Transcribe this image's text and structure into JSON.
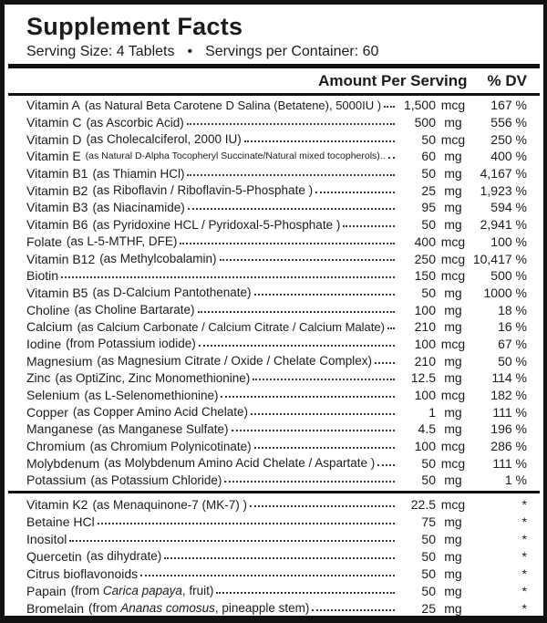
{
  "header": {
    "title": "Supplement Facts",
    "serving_size": "Serving Size: 4 Tablets",
    "bullet": "•",
    "servings_per_container": "Servings per Container: 60"
  },
  "columns": {
    "amount": "Amount Per Serving",
    "dv": "% DV"
  },
  "colors": {
    "background": "#ffffff",
    "text": "#1c1c1c",
    "border": "#111111",
    "leader_dots": "#3b3b3b"
  },
  "sections": [
    {
      "rows": [
        {
          "name": "Vitamin A",
          "desc": [
            "(as Natural Beta Carotene D Salina (Betatene), 5000IU )"
          ],
          "amount": "1,500",
          "unit": "mcg",
          "dv": "167 %"
        },
        {
          "name": "Vitamin C",
          "desc": [
            "(as Ascorbic Acid)"
          ],
          "amount": "500",
          "unit": "mg",
          "dv": "556 %"
        },
        {
          "name": "Vitamin D",
          "desc": [
            "(as Cholecalciferol, 2000 IU)"
          ],
          "amount": "50",
          "unit": "mcg",
          "dv": "250 %"
        },
        {
          "name": "Vitamin E",
          "desc": [
            "(as Natural D-Alpha Tocopheryl Succinate/Natural mixed tocopherols).."
          ],
          "desc_small": true,
          "amount": "60",
          "unit": "mg",
          "dv": "400 %"
        },
        {
          "name": "Vitamin B1",
          "desc": [
            "(as Thiamin HCl)"
          ],
          "amount": "50",
          "unit": "mg",
          "dv": "4,167 %"
        },
        {
          "name": "Vitamin B2",
          "desc": [
            "(as Riboflavin / Riboflavin-5-Phosphate )"
          ],
          "amount": "25",
          "unit": "mg",
          "dv": "1,923 %"
        },
        {
          "name": "Vitamin B3",
          "desc": [
            "(as Niacinamide)"
          ],
          "amount": "95",
          "unit": "mg",
          "dv": "594 %"
        },
        {
          "name": "Vitamin B6",
          "desc": [
            "(as Pyridoxine HCL / Pyridoxal-5-Phosphate )"
          ],
          "amount": "50",
          "unit": "mg",
          "dv": "2,941 %"
        },
        {
          "name": "Folate",
          "desc": [
            "(as L-5-MTHF, DFE)"
          ],
          "amount": "400",
          "unit": "mcg",
          "dv": "100 %"
        },
        {
          "name": "Vitamin B12",
          "desc": [
            "(as Methylcobalamin)"
          ],
          "amount": "250",
          "unit": "mcg",
          "dv": "10,417 %"
        },
        {
          "name": "Biotin",
          "desc": [],
          "amount": "150",
          "unit": "mcg",
          "dv": "500 %"
        },
        {
          "name": "Vitamin B5",
          "desc": [
            "(as D-Calcium Pantothenate)"
          ],
          "amount": "50",
          "unit": "mg",
          "dv": "1000 %"
        },
        {
          "name": "Choline",
          "desc": [
            "(as Choline Bartarate)"
          ],
          "amount": "100",
          "unit": "mg",
          "dv": "18 %"
        },
        {
          "name": "Calcium",
          "desc": [
            "(as Calcium Carbonate / Calcium Citrate / Calcium Malate)"
          ],
          "amount": "210",
          "unit": "mg",
          "dv": "16 %"
        },
        {
          "name": "Iodine",
          "desc": [
            "(from Potassium iodide)"
          ],
          "amount": "100",
          "unit": "mcg",
          "dv": "67 %"
        },
        {
          "name": "Magnesium",
          "desc": [
            "(as Magnesium Citrate / Oxide / Chelate Complex)"
          ],
          "amount": "210",
          "unit": "mg",
          "dv": "50 %"
        },
        {
          "name": "Zinc",
          "desc": [
            "(as OptiZinc, Zinc Monomethionine)"
          ],
          "amount": "12.5",
          "unit": "mg",
          "dv": "114 %"
        },
        {
          "name": "Selenium",
          "desc": [
            "(as L-Selenomethionine)"
          ],
          "amount": "100",
          "unit": "mcg",
          "dv": "182 %"
        },
        {
          "name": "Copper",
          "desc": [
            "(as Copper Amino Acid Chelate)"
          ],
          "amount": "1",
          "unit": "mg",
          "dv": "111 %"
        },
        {
          "name": "Manganese",
          "desc": [
            "(as Manganese Sulfate)"
          ],
          "amount": "4.5",
          "unit": "mg",
          "dv": "196 %"
        },
        {
          "name": "Chromium",
          "desc": [
            "(as Chromium Polynicotinate)"
          ],
          "amount": "100",
          "unit": "mcg",
          "dv": "286 %"
        },
        {
          "name": "Molybdenum",
          "desc": [
            "(as Molybdenum Amino Acid Chelate / Aspartate )"
          ],
          "amount": "50",
          "unit": "mcg",
          "dv": "111 %"
        },
        {
          "name": "Potassium",
          "desc": [
            "(as Potassium Chloride)"
          ],
          "amount": "50",
          "unit": "mg",
          "dv": "1 %"
        }
      ]
    },
    {
      "rows": [
        {
          "name": "Vitamin K2",
          "desc": [
            "(as Menaquinone-7 (MK-7) )"
          ],
          "amount": "22.5",
          "unit": "mcg",
          "dv": "*"
        },
        {
          "name": "Betaine HCl",
          "desc": [],
          "amount": "75",
          "unit": "mg",
          "dv": "*"
        },
        {
          "name": "Inositol",
          "desc": [],
          "amount": "50",
          "unit": "mg",
          "dv": "*"
        },
        {
          "name": "Quercetin",
          "desc": [
            "(as dihydrate)"
          ],
          "amount": "50",
          "unit": "mg",
          "dv": "*"
        },
        {
          "name": "Citrus bioflavonoids",
          "desc": [],
          "amount": "50",
          "unit": "mg",
          "dv": "*"
        },
        {
          "name": "Papain",
          "desc": [
            "(from ",
            {
              "i": "Carica papaya"
            },
            ", fruit)"
          ],
          "amount": "50",
          "unit": "mg",
          "dv": "*"
        },
        {
          "name": "Bromelain",
          "desc": [
            "(from ",
            {
              "i": "Ananas comosus"
            },
            ", pineapple stem)"
          ],
          "amount": "25",
          "unit": "mg",
          "dv": "*"
        }
      ]
    }
  ]
}
